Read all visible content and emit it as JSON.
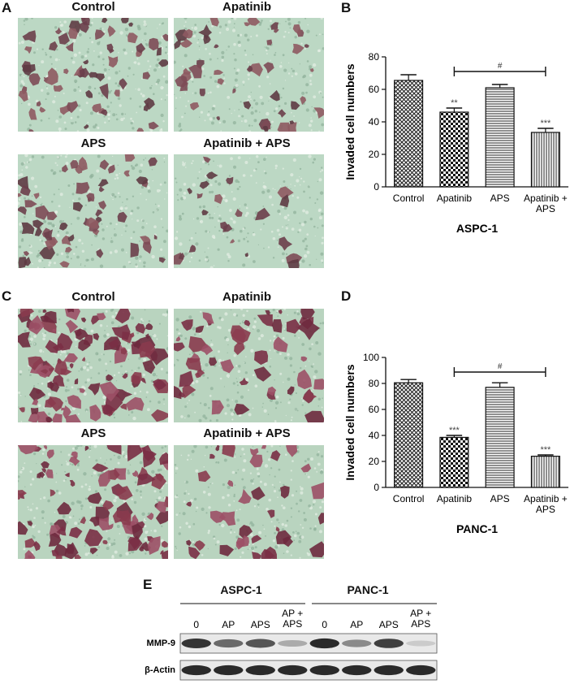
{
  "panels": {
    "A": {
      "letter": "A",
      "images": [
        {
          "title": "Control"
        },
        {
          "title": "Apatinib"
        },
        {
          "title": "APS"
        },
        {
          "title": "Apatinib + APS"
        }
      ]
    },
    "C": {
      "letter": "C",
      "images": [
        {
          "title": "Control"
        },
        {
          "title": "Apatinib"
        },
        {
          "title": "APS"
        },
        {
          "title": "Apatinib + APS"
        }
      ]
    },
    "B": {
      "letter": "B"
    },
    "D": {
      "letter": "D"
    },
    "E": {
      "letter": "E"
    }
  },
  "chart_data": [
    {
      "type": "bar",
      "categories": [
        "Control",
        "Apatinib",
        "APS",
        "Apatinib + APS"
      ],
      "category_lines": [
        [
          "Control"
        ],
        [
          "Apatinib"
        ],
        [
          "APS"
        ],
        [
          "Apatinib +",
          "APS"
        ]
      ],
      "values": [
        65.5,
        46,
        61,
        33.5
      ],
      "errors": [
        3.5,
        2.5,
        2,
        2.5
      ],
      "significance": [
        "",
        "**",
        "",
        "***"
      ],
      "bracket": {
        "from": 1,
        "to": 3,
        "label": "#"
      },
      "ylabel": "Invaded cell numbers",
      "xlabel": "ASPC-1",
      "ylim": [
        0,
        80
      ],
      "yticks": [
        0,
        20,
        40,
        60,
        80
      ],
      "patterns": [
        "crosshatch",
        "checker",
        "horizontal",
        "vertical"
      ]
    },
    {
      "type": "bar",
      "categories": [
        "Control",
        "Apatinib",
        "APS",
        "Apatinib + APS"
      ],
      "category_lines": [
        [
          "Control"
        ],
        [
          "Apatinib"
        ],
        [
          "APS"
        ],
        [
          "Apatinib +",
          "APS"
        ]
      ],
      "values": [
        80.5,
        38.5,
        77,
        24
      ],
      "errors": [
        2.5,
        1.5,
        3.5,
        1
      ],
      "significance": [
        "",
        "***",
        "",
        "***"
      ],
      "bracket": {
        "from": 1,
        "to": 3,
        "label": "#"
      },
      "ylabel": "Invaded cell numbers",
      "xlabel": "PANC-1",
      "ylim": [
        0,
        100
      ],
      "yticks": [
        0,
        20,
        40,
        60,
        80,
        100
      ],
      "patterns": [
        "crosshatch",
        "checker",
        "horizontal",
        "vertical"
      ]
    }
  ],
  "western_blot": {
    "groups": [
      "ASPC-1",
      "PANC-1"
    ],
    "lanes": [
      "0",
      "AP",
      "APS",
      "AP +\nAPS",
      "0",
      "AP",
      "APS",
      "AP +\nAPS"
    ],
    "rows": [
      {
        "label": "MMP-9",
        "intensities": [
          0.85,
          0.6,
          0.7,
          0.3,
          0.9,
          0.45,
          0.8,
          0.15
        ]
      },
      {
        "label": "β-Actin",
        "intensities": [
          0.9,
          0.9,
          0.9,
          0.9,
          0.9,
          0.9,
          0.9,
          0.9
        ]
      }
    ]
  }
}
